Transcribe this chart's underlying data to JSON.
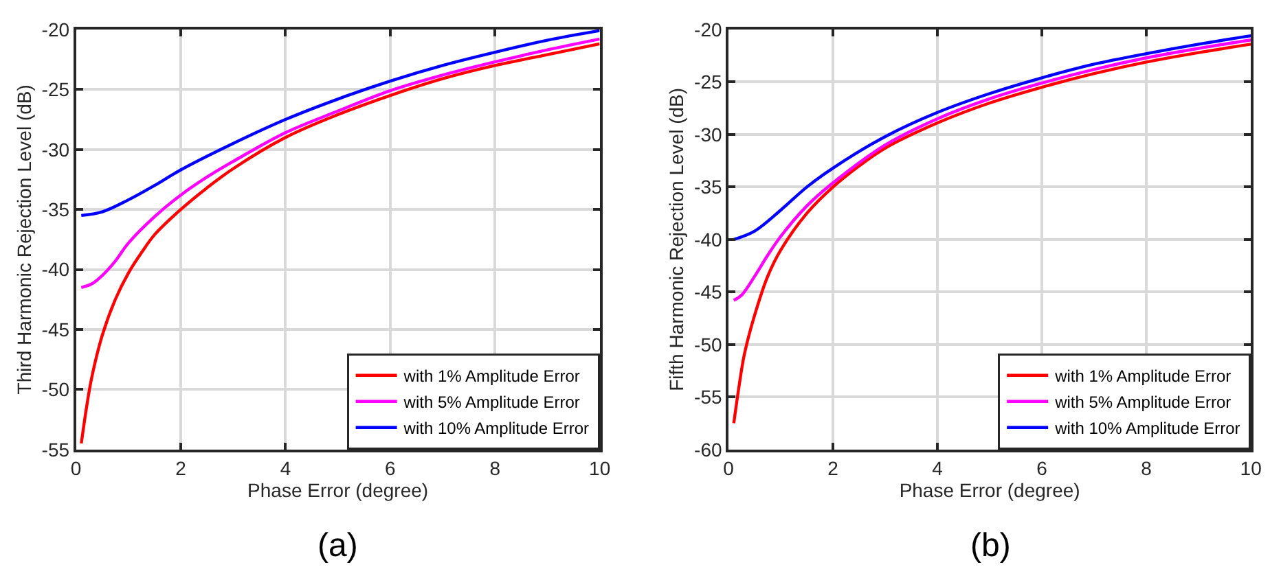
{
  "chart_data": [
    {
      "type": "line",
      "xlabel": "Phase Error (degree)",
      "ylabel": "Third Harmonic Rejection Level (dB)",
      "annotations": [
        "(a)"
      ],
      "xlim": [
        0,
        10
      ],
      "xticks": [
        0,
        2,
        4,
        6,
        8,
        10
      ],
      "ylim": [
        -55,
        -20
      ],
      "yticks": [
        -55,
        -50,
        -45,
        -40,
        -35,
        -30,
        -25,
        -20
      ],
      "grid": true,
      "legend": "bottom right",
      "line_style": "solid",
      "marker": "none",
      "series": [
        {
          "name": "with 1% Amplitude Error",
          "color": "#ff0000",
          "x": [
            0.1,
            0.2,
            0.3,
            0.5,
            0.75,
            1,
            1.25,
            1.5,
            2,
            2.5,
            3,
            4,
            5,
            6,
            7,
            8,
            9,
            10
          ],
          "values": [
            -54.5,
            -51.5,
            -49,
            -45.5,
            -42.5,
            -40.3,
            -38.6,
            -37.1,
            -35,
            -33.2,
            -31.6,
            -29.0,
            -27.1,
            -25.5,
            -24.1,
            -23.0,
            -22.1,
            -21.2
          ]
        },
        {
          "name": "with 5% Amplitude Error",
          "color": "#ff00ff",
          "x": [
            0.1,
            0.3,
            0.5,
            0.75,
            1,
            1.5,
            2,
            2.5,
            3,
            4,
            5,
            6,
            7,
            8,
            9,
            10
          ],
          "values": [
            -41.5,
            -41.2,
            -40.5,
            -39.3,
            -37.8,
            -35.6,
            -33.8,
            -32.3,
            -31.0,
            -28.6,
            -26.8,
            -25.1,
            -23.8,
            -22.7,
            -21.7,
            -20.8
          ]
        },
        {
          "name": "with 10% Amplitude Error",
          "color": "#0000ff",
          "x": [
            0.1,
            0.5,
            1,
            1.5,
            2,
            3,
            4,
            5,
            6,
            7,
            8,
            9,
            10
          ],
          "values": [
            -35.5,
            -35.2,
            -34.2,
            -33.0,
            -31.7,
            -29.5,
            -27.5,
            -25.8,
            -24.3,
            -23.0,
            -21.9,
            -20.9,
            -20.1
          ]
        }
      ]
    },
    {
      "type": "line",
      "xlabel": "Phase Error (degree)",
      "ylabel": "Fifth Harmonic Rejection Level (dB)",
      "annotations": [
        "(b)"
      ],
      "xlim": [
        0,
        10
      ],
      "xticks": [
        0,
        2,
        4,
        6,
        8,
        10
      ],
      "ylim": [
        -60,
        -20
      ],
      "yticks": [
        -60,
        -55,
        -50,
        -45,
        -40,
        -35,
        -30,
        -25,
        -20
      ],
      "grid": true,
      "legend": "bottom right",
      "line_style": "solid",
      "marker": "none",
      "series": [
        {
          "name": "with 1% Amplitude Error",
          "color": "#ff0000",
          "x": [
            0.1,
            0.2,
            0.3,
            0.5,
            0.75,
            1,
            1.5,
            2,
            2.5,
            3,
            4,
            5,
            6,
            7,
            8,
            9,
            10
          ],
          "values": [
            -57.5,
            -54,
            -51,
            -47.2,
            -43.5,
            -41,
            -37.5,
            -35,
            -33,
            -31.3,
            -28.9,
            -27,
            -25.5,
            -24.2,
            -23.1,
            -22.2,
            -21.4
          ]
        },
        {
          "name": "with 5% Amplitude Error",
          "color": "#ff00ff",
          "x": [
            0.1,
            0.25,
            0.5,
            0.75,
            1,
            1.5,
            2,
            3,
            4,
            5,
            6,
            7,
            8,
            9,
            10
          ],
          "values": [
            -45.8,
            -45.3,
            -43.5,
            -41.5,
            -39.7,
            -36.8,
            -34.6,
            -31,
            -28.5,
            -26.6,
            -25.1,
            -23.8,
            -22.7,
            -21.8,
            -21.0
          ]
        },
        {
          "name": "with 10% Amplitude Error",
          "color": "#0000ff",
          "x": [
            0.1,
            0.5,
            1,
            1.5,
            2,
            3,
            4,
            5,
            6,
            7,
            8,
            9,
            10
          ],
          "values": [
            -40,
            -39.2,
            -37.2,
            -35,
            -33.2,
            -30.2,
            -27.9,
            -26.1,
            -24.6,
            -23.3,
            -22.3,
            -21.4,
            -20.6
          ]
        }
      ]
    }
  ]
}
